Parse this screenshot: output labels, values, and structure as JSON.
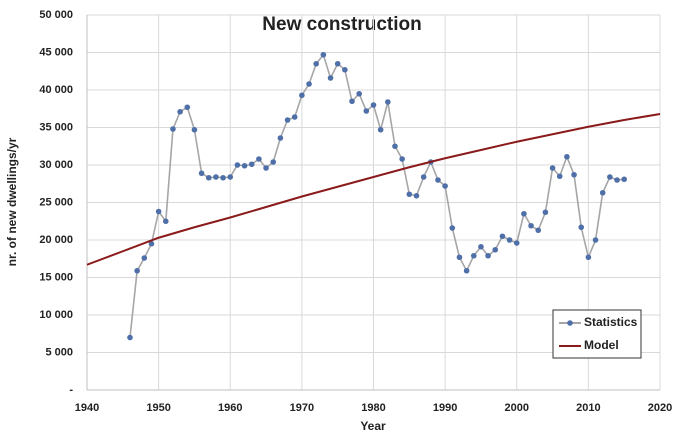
{
  "chart_data": {
    "type": "line",
    "title": "New construction",
    "x_label": "Year",
    "y_label": "nr. of new dwellings/yr",
    "xlim": [
      1940,
      2020
    ],
    "xticks": [
      1940,
      1950,
      1960,
      1970,
      1980,
      1990,
      2000,
      2010,
      2020
    ],
    "ylim": [
      0,
      50000
    ],
    "yticks": [
      {
        "value": 0,
        "label": "-"
      },
      {
        "value": 5000,
        "label": "5 000"
      },
      {
        "value": 10000,
        "label": "10 000"
      },
      {
        "value": 15000,
        "label": "15 000"
      },
      {
        "value": 20000,
        "label": "20 000"
      },
      {
        "value": 25000,
        "label": "25 000"
      },
      {
        "value": 30000,
        "label": "30 000"
      },
      {
        "value": 35000,
        "label": "35 000"
      },
      {
        "value": 40000,
        "label": "40 000"
      },
      {
        "value": 45000,
        "label": "45 000"
      },
      {
        "value": 50000,
        "label": "50 000"
      }
    ],
    "grid": true,
    "legend": "lower right",
    "series": [
      {
        "name": "Statistics",
        "color": "#a6a6a6",
        "marker_color": "#4f6fa8",
        "markers": true,
        "x": [
          1946,
          1947,
          1948,
          1949,
          1950,
          1951,
          1952,
          1953,
          1954,
          1955,
          1956,
          1957,
          1958,
          1959,
          1960,
          1961,
          1962,
          1963,
          1964,
          1965,
          1966,
          1967,
          1968,
          1969,
          1970,
          1971,
          1972,
          1973,
          1974,
          1975,
          1976,
          1977,
          1978,
          1979,
          1980,
          1981,
          1982,
          1983,
          1984,
          1985,
          1986,
          1987,
          1988,
          1989,
          1990,
          1991,
          1992,
          1993,
          1994,
          1995,
          1996,
          1997,
          1998,
          1999,
          2000,
          2001,
          2002,
          2003,
          2004,
          2005,
          2006,
          2007,
          2008,
          2009,
          2010,
          2011,
          2012,
          2013,
          2014,
          2015
        ],
        "values": [
          7000,
          15900,
          17600,
          19500,
          23800,
          22500,
          34800,
          37100,
          37700,
          34700,
          28900,
          28300,
          28400,
          28300,
          28400,
          30000,
          29900,
          30100,
          30800,
          29600,
          30400,
          33600,
          36000,
          36400,
          39300,
          40800,
          43500,
          44700,
          41600,
          43500,
          42700,
          38500,
          39500,
          37200,
          38000,
          34700,
          38400,
          32500,
          30800,
          26100,
          25900,
          28400,
          30400,
          28000,
          27200,
          21600,
          17700,
          15900,
          17900,
          19100,
          17900,
          18700,
          20500,
          20000,
          19600,
          23500,
          21900,
          21300,
          23700,
          29600,
          28500,
          31100,
          28700,
          21700,
          17700,
          20000,
          26300,
          28400,
          28000,
          28100
        ]
      },
      {
        "name": "Model",
        "color": "#8b1a1a",
        "markers": false,
        "x": [
          1940,
          1945,
          1950,
          1955,
          1960,
          1965,
          1970,
          1975,
          1980,
          1985,
          1990,
          1995,
          2000,
          2005,
          2010,
          2015,
          2020
        ],
        "values": [
          16700,
          18500,
          20300,
          21700,
          23000,
          24400,
          25800,
          27100,
          28400,
          29700,
          30900,
          32000,
          33100,
          34100,
          35100,
          36000,
          36800
        ]
      }
    ]
  }
}
